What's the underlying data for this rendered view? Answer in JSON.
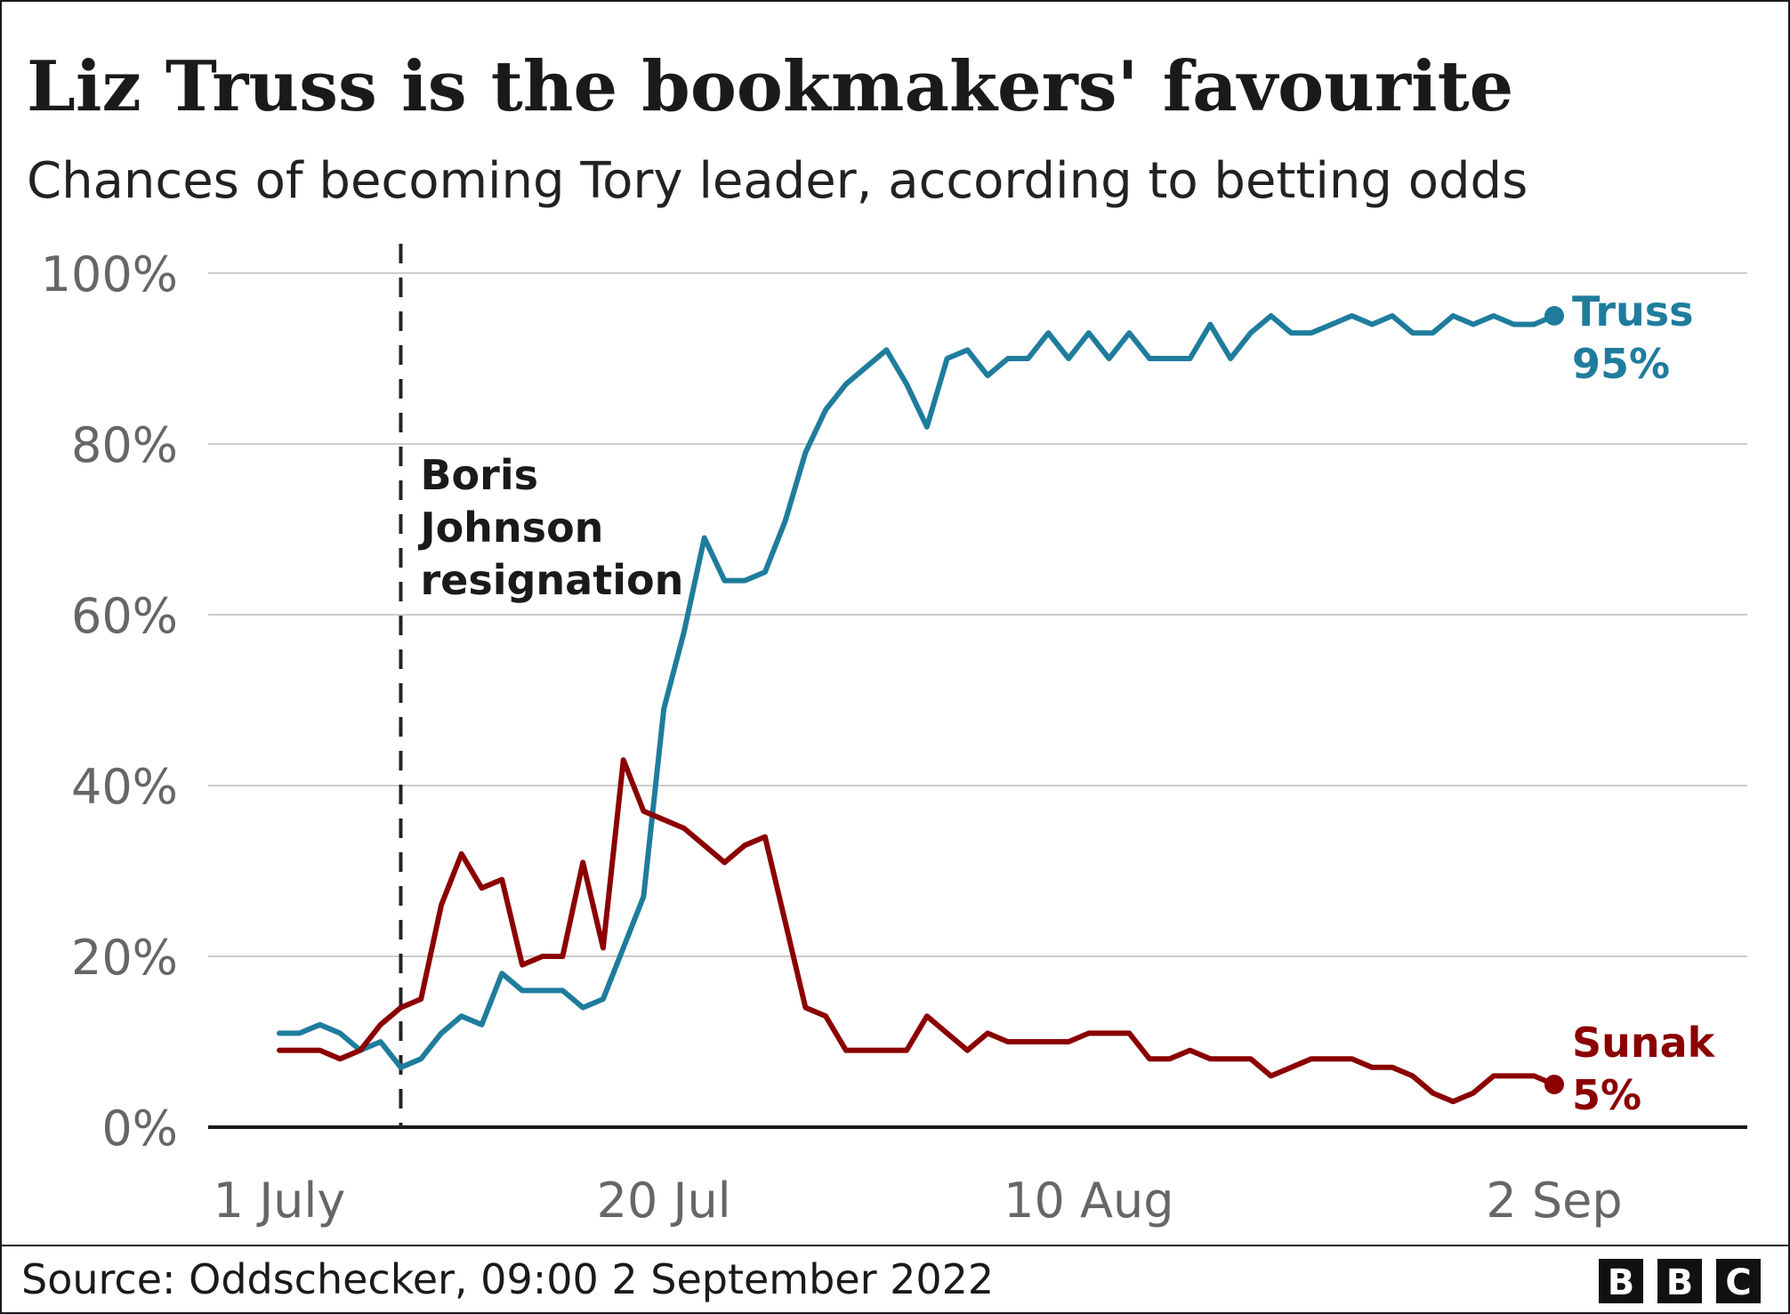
{
  "title": "Liz Truss is the bookmakers' favourite",
  "subtitle": "Chances of becoming Tory leader, according to betting odds",
  "source": "Source: Oddschecker, 09:00 2 September 2022",
  "logo": [
    "B",
    "B",
    "C"
  ],
  "colors": {
    "truss": "#1f7c9d",
    "sunak": "#8b0000",
    "grid": "#cccccc",
    "axis": "#1a1a1a"
  },
  "chart_data": {
    "type": "line",
    "title": "Liz Truss is the bookmakers' favourite",
    "subtitle": "Chances of becoming Tory leader, according to betting odds",
    "xlabel": "",
    "ylabel": "",
    "ylim": [
      0,
      100
    ],
    "y_ticks": [
      0,
      20,
      40,
      60,
      80,
      100
    ],
    "y_tick_labels": [
      "0%",
      "20%",
      "40%",
      "60%",
      "80%",
      "100%"
    ],
    "x_tick_labels": [
      "1 July",
      "20 Jul",
      "10 Aug",
      "2 Sep"
    ],
    "x_tick_dates": [
      "2022-07-01",
      "2022-07-20",
      "2022-08-10",
      "2022-09-02"
    ],
    "grid": true,
    "annotations": [
      {
        "date": "2022-07-07",
        "lines": [
          "Boris",
          "Johnson",
          "resignation"
        ],
        "style": "dashed-vertical"
      }
    ],
    "series": [
      {
        "name": "Truss",
        "end_label": "Truss",
        "end_value_label": "95%",
        "x": [
          "2022-07-01",
          "2022-07-02",
          "2022-07-03",
          "2022-07-04",
          "2022-07-05",
          "2022-07-06",
          "2022-07-07",
          "2022-07-08",
          "2022-07-09",
          "2022-07-10",
          "2022-07-11",
          "2022-07-12",
          "2022-07-13",
          "2022-07-14",
          "2022-07-15",
          "2022-07-16",
          "2022-07-17",
          "2022-07-18",
          "2022-07-19",
          "2022-07-20",
          "2022-07-21",
          "2022-07-22",
          "2022-07-23",
          "2022-07-24",
          "2022-07-25",
          "2022-07-26",
          "2022-07-27",
          "2022-07-28",
          "2022-07-29",
          "2022-07-30",
          "2022-07-31",
          "2022-08-01",
          "2022-08-02",
          "2022-08-03",
          "2022-08-04",
          "2022-08-05",
          "2022-08-06",
          "2022-08-07",
          "2022-08-08",
          "2022-08-09",
          "2022-08-10",
          "2022-08-11",
          "2022-08-12",
          "2022-08-13",
          "2022-08-14",
          "2022-08-15",
          "2022-08-16",
          "2022-08-17",
          "2022-08-18",
          "2022-08-19",
          "2022-08-20",
          "2022-08-21",
          "2022-08-22",
          "2022-08-23",
          "2022-08-24",
          "2022-08-25",
          "2022-08-26",
          "2022-08-27",
          "2022-08-28",
          "2022-08-29",
          "2022-08-30",
          "2022-08-31",
          "2022-09-01",
          "2022-09-02"
        ],
        "y": [
          11,
          11,
          12,
          11,
          9,
          10,
          7,
          8,
          11,
          13,
          12,
          18,
          16,
          16,
          16,
          14,
          15,
          21,
          27,
          49,
          58,
          69,
          64,
          64,
          65,
          71,
          79,
          84,
          87,
          89,
          91,
          87,
          82,
          90,
          91,
          88,
          90,
          90,
          93,
          90,
          93,
          90,
          93,
          90,
          90,
          90,
          94,
          90,
          93,
          95,
          93,
          93,
          94,
          95,
          94,
          95,
          93,
          93,
          95,
          94,
          95,
          94,
          94,
          95
        ]
      },
      {
        "name": "Sunak",
        "end_label": "Sunak",
        "end_value_label": "5%",
        "x": [
          "2022-07-01",
          "2022-07-02",
          "2022-07-03",
          "2022-07-04",
          "2022-07-05",
          "2022-07-06",
          "2022-07-07",
          "2022-07-08",
          "2022-07-09",
          "2022-07-10",
          "2022-07-11",
          "2022-07-12",
          "2022-07-13",
          "2022-07-14",
          "2022-07-15",
          "2022-07-16",
          "2022-07-17",
          "2022-07-18",
          "2022-07-19",
          "2022-07-20",
          "2022-07-21",
          "2022-07-22",
          "2022-07-23",
          "2022-07-24",
          "2022-07-25",
          "2022-07-26",
          "2022-07-27",
          "2022-07-28",
          "2022-07-29",
          "2022-07-30",
          "2022-07-31",
          "2022-08-01",
          "2022-08-02",
          "2022-08-03",
          "2022-08-04",
          "2022-08-05",
          "2022-08-06",
          "2022-08-07",
          "2022-08-08",
          "2022-08-09",
          "2022-08-10",
          "2022-08-11",
          "2022-08-12",
          "2022-08-13",
          "2022-08-14",
          "2022-08-15",
          "2022-08-16",
          "2022-08-17",
          "2022-08-18",
          "2022-08-19",
          "2022-08-20",
          "2022-08-21",
          "2022-08-22",
          "2022-08-23",
          "2022-08-24",
          "2022-08-25",
          "2022-08-26",
          "2022-08-27",
          "2022-08-28",
          "2022-08-29",
          "2022-08-30",
          "2022-08-31",
          "2022-09-01",
          "2022-09-02"
        ],
        "y": [
          9,
          9,
          9,
          8,
          9,
          12,
          14,
          15,
          26,
          32,
          28,
          29,
          19,
          20,
          20,
          31,
          21,
          43,
          37,
          36,
          35,
          33,
          31,
          33,
          34,
          24,
          14,
          13,
          9,
          9,
          9,
          9,
          13,
          11,
          9,
          11,
          10,
          10,
          10,
          10,
          11,
          11,
          11,
          8,
          8,
          9,
          8,
          8,
          8,
          6,
          7,
          8,
          8,
          8,
          7,
          7,
          6,
          4,
          3,
          4,
          6,
          6,
          6,
          5
        ]
      }
    ]
  }
}
